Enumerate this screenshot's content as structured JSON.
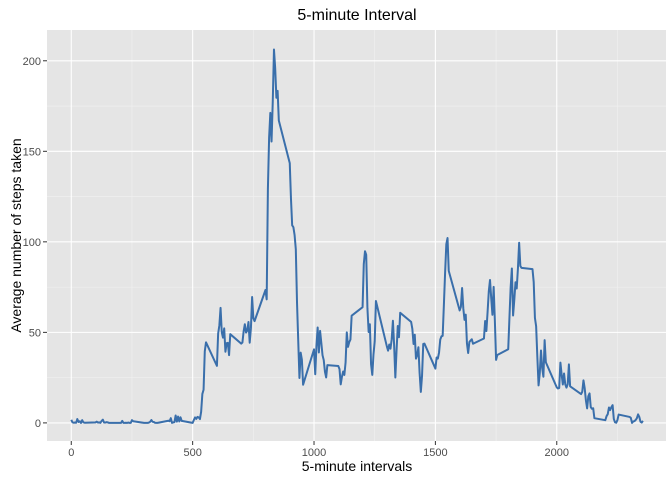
{
  "chart_data": {
    "type": "line",
    "title": "5-minute Interval",
    "xlabel": "5-minute intervals",
    "ylabel": "Average number of steps taken",
    "xlim": [
      -100,
      2450
    ],
    "ylim": [
      -10,
      217
    ],
    "x_ticks": [
      0,
      500,
      1000,
      1500,
      2000
    ],
    "y_ticks": [
      0,
      50,
      100,
      150,
      200
    ],
    "grid": true,
    "series_color": "#3a6fab",
    "panel_background": "#e5e5e5",
    "series": [
      {
        "points": [
          [
            0,
            1.7
          ],
          [
            5,
            0.3
          ],
          [
            10,
            0.1
          ],
          [
            15,
            0.2
          ],
          [
            20,
            0.1
          ],
          [
            25,
            2.1
          ],
          [
            30,
            0.5
          ],
          [
            35,
            0.9
          ],
          [
            40,
            0
          ],
          [
            45,
            1.5
          ],
          [
            50,
            0.3
          ],
          [
            55,
            0.1
          ],
          [
            100,
            0.3
          ],
          [
            105,
            0.7
          ],
          [
            110,
            0.2
          ],
          [
            115,
            0.3
          ],
          [
            120,
            0
          ],
          [
            125,
            1.1
          ],
          [
            130,
            1.8
          ],
          [
            135,
            0.2
          ],
          [
            140,
            0.2
          ],
          [
            145,
            0.4
          ],
          [
            150,
            0.3
          ],
          [
            155,
            0
          ],
          [
            200,
            0
          ],
          [
            205,
            0
          ],
          [
            210,
            1.1
          ],
          [
            215,
            0
          ],
          [
            220,
            0
          ],
          [
            225,
            0.1
          ],
          [
            230,
            0
          ],
          [
            235,
            0.2
          ],
          [
            240,
            0
          ],
          [
            245,
            0
          ],
          [
            250,
            1.5
          ],
          [
            255,
            0.9
          ],
          [
            300,
            0
          ],
          [
            305,
            0
          ],
          [
            310,
            0
          ],
          [
            315,
            0
          ],
          [
            320,
            0.2
          ],
          [
            325,
            0.6
          ],
          [
            330,
            1.6
          ],
          [
            335,
            0.6
          ],
          [
            340,
            0.5
          ],
          [
            345,
            0.1
          ],
          [
            350,
            0
          ],
          [
            355,
            0
          ],
          [
            400,
            1.2
          ],
          [
            405,
            0.9
          ],
          [
            410,
            2.6
          ],
          [
            415,
            0
          ],
          [
            420,
            0.3
          ],
          [
            425,
            0.4
          ],
          [
            430,
            4.1
          ],
          [
            435,
            0.7
          ],
          [
            440,
            3.5
          ],
          [
            445,
            0.8
          ],
          [
            450,
            3.1
          ],
          [
            455,
            1.1
          ],
          [
            500,
            0
          ],
          [
            505,
            1.6
          ],
          [
            510,
            3.0
          ],
          [
            515,
            2.2
          ],
          [
            520,
            3.3
          ],
          [
            525,
            3.0
          ],
          [
            530,
            2.1
          ],
          [
            535,
            6.1
          ],
          [
            540,
            16.0
          ],
          [
            545,
            18.3
          ],
          [
            550,
            39.5
          ],
          [
            555,
            44.5
          ],
          [
            600,
            31.5
          ],
          [
            605,
            49.3
          ],
          [
            610,
            53.8
          ],
          [
            615,
            63.5
          ],
          [
            620,
            50.0
          ],
          [
            625,
            47.1
          ],
          [
            630,
            52.2
          ],
          [
            635,
            39.3
          ],
          [
            640,
            44.0
          ],
          [
            645,
            44.2
          ],
          [
            650,
            37.4
          ],
          [
            655,
            49.0
          ],
          [
            700,
            43.8
          ],
          [
            705,
            44.4
          ],
          [
            710,
            50.5
          ],
          [
            715,
            54.5
          ],
          [
            720,
            49.9
          ],
          [
            725,
            51.0
          ],
          [
            730,
            55.7
          ],
          [
            735,
            44.3
          ],
          [
            740,
            52.3
          ],
          [
            745,
            69.5
          ],
          [
            750,
            57.8
          ],
          [
            755,
            56.2
          ],
          [
            800,
            73.4
          ],
          [
            805,
            68.2
          ],
          [
            810,
            129.4
          ],
          [
            815,
            157.5
          ],
          [
            820,
            171.2
          ],
          [
            825,
            155.4
          ],
          [
            830,
            177.3
          ],
          [
            835,
            206.2
          ],
          [
            840,
            195.9
          ],
          [
            845,
            179.6
          ],
          [
            850,
            183.4
          ],
          [
            855,
            167.0
          ],
          [
            900,
            143.5
          ],
          [
            905,
            124.0
          ],
          [
            910,
            109.1
          ],
          [
            915,
            108.1
          ],
          [
            920,
            103.7
          ],
          [
            925,
            95.9
          ],
          [
            930,
            66.2
          ],
          [
            935,
            45.2
          ],
          [
            940,
            24.8
          ],
          [
            945,
            38.8
          ],
          [
            950,
            34.9
          ],
          [
            955,
            21.1
          ],
          [
            1000,
            40.6
          ],
          [
            1005,
            26.9
          ],
          [
            1010,
            42.4
          ],
          [
            1015,
            52.7
          ],
          [
            1020,
            38.9
          ],
          [
            1025,
            50.8
          ],
          [
            1030,
            44.3
          ],
          [
            1035,
            37.4
          ],
          [
            1040,
            34.7
          ],
          [
            1045,
            28.3
          ],
          [
            1050,
            25.1
          ],
          [
            1055,
            31.9
          ],
          [
            1100,
            31.4
          ],
          [
            1105,
            29.7
          ],
          [
            1110,
            21.3
          ],
          [
            1115,
            25.5
          ],
          [
            1120,
            28.4
          ],
          [
            1125,
            26.5
          ],
          [
            1130,
            33.4
          ],
          [
            1135,
            50.0
          ],
          [
            1140,
            42.0
          ],
          [
            1145,
            44.6
          ],
          [
            1150,
            46.0
          ],
          [
            1155,
            59.2
          ],
          [
            1200,
            63.9
          ],
          [
            1205,
            87.7
          ],
          [
            1210,
            94.8
          ],
          [
            1215,
            92.8
          ],
          [
            1220,
            63.4
          ],
          [
            1225,
            50.2
          ],
          [
            1230,
            54.5
          ],
          [
            1235,
            32.4
          ],
          [
            1240,
            26.5
          ],
          [
            1245,
            37.7
          ],
          [
            1250,
            45.1
          ],
          [
            1255,
            67.3
          ],
          [
            1300,
            42.3
          ],
          [
            1305,
            39.9
          ],
          [
            1310,
            43.3
          ],
          [
            1315,
            40.98
          ],
          [
            1320,
            46.2
          ],
          [
            1325,
            56.4
          ],
          [
            1330,
            42.8
          ],
          [
            1335,
            25.1
          ],
          [
            1340,
            40.0
          ],
          [
            1345,
            53.5
          ],
          [
            1350,
            47.3
          ],
          [
            1355,
            60.8
          ],
          [
            1400,
            55.8
          ],
          [
            1405,
            51.96
          ],
          [
            1410,
            43.6
          ],
          [
            1415,
            48.7
          ],
          [
            1420,
            35.5
          ],
          [
            1425,
            37.5
          ],
          [
            1430,
            41.8
          ],
          [
            1435,
            27.5
          ],
          [
            1440,
            17.1
          ],
          [
            1445,
            26.1
          ],
          [
            1450,
            43.6
          ],
          [
            1455,
            43.8
          ],
          [
            1500,
            30.0
          ],
          [
            1505,
            36.1
          ],
          [
            1510,
            35.5
          ],
          [
            1515,
            38.8
          ],
          [
            1520,
            46.0
          ],
          [
            1525,
            47.8
          ],
          [
            1530,
            48.1
          ],
          [
            1535,
            65.3
          ],
          [
            1540,
            82.9
          ],
          [
            1545,
            98.7
          ],
          [
            1550,
            102.1
          ],
          [
            1555,
            83.96
          ],
          [
            1600,
            62.1
          ],
          [
            1605,
            64.1
          ],
          [
            1610,
            74.5
          ],
          [
            1615,
            63.2
          ],
          [
            1620,
            56.9
          ],
          [
            1625,
            59.8
          ],
          [
            1630,
            43.9
          ],
          [
            1635,
            38.6
          ],
          [
            1640,
            44.7
          ],
          [
            1645,
            45.5
          ],
          [
            1650,
            46.2
          ],
          [
            1655,
            43.7
          ],
          [
            1700,
            46.6
          ],
          [
            1705,
            56.3
          ],
          [
            1710,
            50.7
          ],
          [
            1715,
            61.2
          ],
          [
            1720,
            72.7
          ],
          [
            1725,
            78.9
          ],
          [
            1730,
            68.9
          ],
          [
            1735,
            59.7
          ],
          [
            1740,
            75.1
          ],
          [
            1745,
            56.5
          ],
          [
            1750,
            34.8
          ],
          [
            1755,
            37.5
          ],
          [
            1800,
            40.7
          ],
          [
            1805,
            58.0
          ],
          [
            1810,
            74.7
          ],
          [
            1815,
            85.3
          ],
          [
            1820,
            59.3
          ],
          [
            1825,
            67.8
          ],
          [
            1830,
            77.7
          ],
          [
            1835,
            74.2
          ],
          [
            1840,
            85.3
          ],
          [
            1845,
            99.5
          ],
          [
            1850,
            86.6
          ],
          [
            1855,
            85.6
          ],
          [
            1900,
            84.9
          ],
          [
            1905,
            77.8
          ],
          [
            1910,
            58.0
          ],
          [
            1915,
            53.4
          ],
          [
            1920,
            36.3
          ],
          [
            1925,
            20.7
          ],
          [
            1930,
            27.4
          ],
          [
            1935,
            40.0
          ],
          [
            1940,
            30.2
          ],
          [
            1945,
            25.5
          ],
          [
            1950,
            45.7
          ],
          [
            1955,
            33.5
          ],
          [
            2000,
            19.6
          ],
          [
            2005,
            19.0
          ],
          [
            2010,
            19.3
          ],
          [
            2015,
            33.3
          ],
          [
            2020,
            26.8
          ],
          [
            2025,
            21.2
          ],
          [
            2030,
            27.3
          ],
          [
            2035,
            21.3
          ],
          [
            2040,
            19.5
          ],
          [
            2045,
            21.3
          ],
          [
            2050,
            32.3
          ],
          [
            2055,
            20.2
          ],
          [
            2100,
            15.9
          ],
          [
            2105,
            17.2
          ],
          [
            2110,
            23.5
          ],
          [
            2115,
            19.2
          ],
          [
            2120,
            12.5
          ],
          [
            2125,
            8.0
          ],
          [
            2130,
            14.7
          ],
          [
            2135,
            16.3
          ],
          [
            2140,
            8.7
          ],
          [
            2145,
            7.8
          ],
          [
            2150,
            8.1
          ],
          [
            2155,
            2.6
          ],
          [
            2200,
            1.5
          ],
          [
            2205,
            3.7
          ],
          [
            2210,
            4.8
          ],
          [
            2215,
            8.5
          ],
          [
            2220,
            7.1
          ],
          [
            2225,
            8.7
          ],
          [
            2230,
            9.8
          ],
          [
            2235,
            2.2
          ],
          [
            2240,
            0.3
          ],
          [
            2245,
            0.1
          ],
          [
            2250,
            1.6
          ],
          [
            2255,
            4.6
          ],
          [
            2300,
            3.3
          ],
          [
            2305,
            2.8
          ],
          [
            2310,
            0
          ],
          [
            2315,
            0.8
          ],
          [
            2320,
            0.96
          ],
          [
            2325,
            1.6
          ],
          [
            2330,
            2.6
          ],
          [
            2335,
            4.7
          ],
          [
            2340,
            3.3
          ],
          [
            2345,
            0.6
          ],
          [
            2350,
            0.2
          ],
          [
            2355,
            1.1
          ]
        ]
      }
    ]
  }
}
